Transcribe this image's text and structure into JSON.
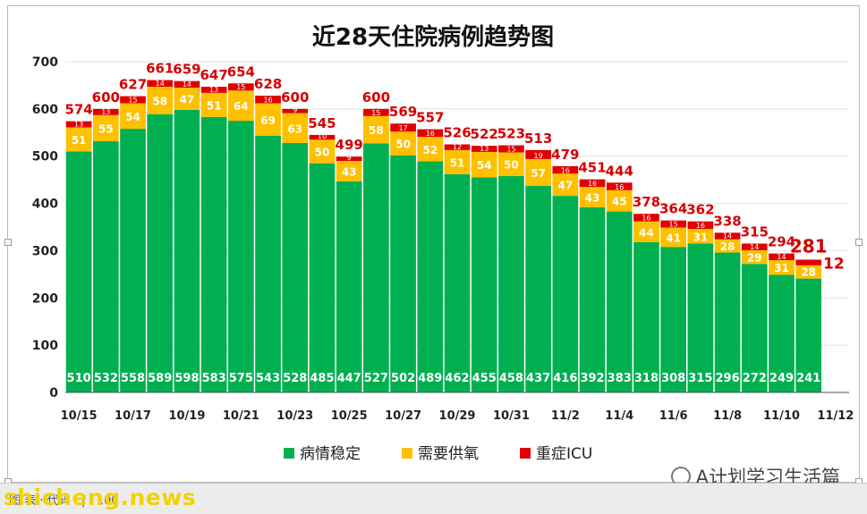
{
  "chart_data": {
    "type": "bar",
    "stacked": true,
    "title": "近28天住院病例趋势图",
    "categories": [
      "10/15",
      "10/16",
      "10/17",
      "10/18",
      "10/19",
      "10/20",
      "10/21",
      "10/22",
      "10/23",
      "10/24",
      "10/25",
      "10/26",
      "10/27",
      "10/28",
      "10/29",
      "10/30",
      "10/31",
      "11/1",
      "11/2",
      "11/3",
      "11/4",
      "11/5",
      "11/6",
      "11/7",
      "11/8",
      "11/9",
      "11/10",
      "11/11",
      "11/12"
    ],
    "tick_labels": [
      "10/15",
      "",
      "10/17",
      "",
      "10/19",
      "",
      "10/21",
      "",
      "10/23",
      "",
      "10/25",
      "",
      "10/27",
      "",
      "10/29",
      "",
      "10/31",
      "",
      "11/2",
      "",
      "11/4",
      "",
      "11/6",
      "",
      "11/8",
      "",
      "11/10",
      "",
      "11/12"
    ],
    "series": [
      {
        "name": "病情稳定",
        "color": "#00b050",
        "values": [
          510,
          532,
          558,
          589,
          598,
          583,
          575,
          543,
          528,
          485,
          447,
          527,
          502,
          489,
          462,
          455,
          458,
          437,
          416,
          392,
          383,
          318,
          308,
          315,
          296,
          272,
          249,
          241,
          null
        ]
      },
      {
        "name": "需要供氧",
        "color": "#ffc000",
        "values": [
          51,
          55,
          54,
          58,
          47,
          51,
          64,
          69,
          63,
          50,
          43,
          58,
          50,
          52,
          51,
          54,
          50,
          57,
          47,
          43,
          45,
          44,
          41,
          31,
          28,
          29,
          31,
          28,
          null
        ]
      },
      {
        "name": "重症ICU",
        "color": "#e00000",
        "values": [
          13,
          13,
          15,
          14,
          14,
          13,
          15,
          16,
          9,
          10,
          9,
          15,
          17,
          16,
          12,
          13,
          15,
          19,
          16,
          16,
          16,
          16,
          15,
          16,
          14,
          14,
          14,
          12,
          null
        ]
      }
    ],
    "totals": [
      "574",
      "600",
      "627",
      "661",
      "659",
      "647",
      "654",
      "628",
      "600",
      "545",
      "499",
      "600",
      "569",
      "557",
      "526",
      "522",
      "523",
      "513",
      "479",
      "451",
      "444",
      "378",
      "364",
      "362",
      "338",
      "315",
      "294",
      "281",
      ""
    ],
    "ylim": [
      0,
      700
    ],
    "yticks": [
      0,
      100,
      200,
      300,
      400,
      500,
      600,
      700
    ],
    "grid": true,
    "legend_position": "bottom-center",
    "label_colors": {
      "stable": "#ffffff",
      "total": "#d40000"
    }
  },
  "watermark": {
    "text": "A计划学习生活篇"
  },
  "footer": {
    "site": "shicheng.news",
    "toolbar": "图 表  · 代码 · | · 100"
  }
}
